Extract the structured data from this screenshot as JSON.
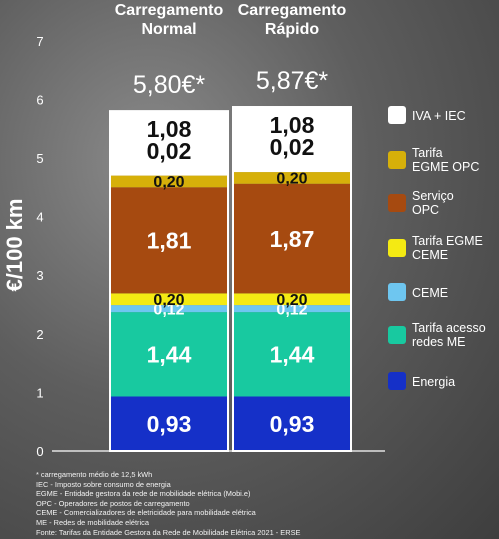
{
  "chart_data": {
    "type": "bar",
    "stacked": true,
    "ylabel": "€/100 km",
    "ylim": [
      0,
      7
    ],
    "yticks": [
      0,
      1,
      2,
      3,
      4,
      5,
      6,
      7
    ],
    "categories": [
      "Carregamento Normal",
      "Carregamento Rápido"
    ],
    "totals": [
      "5,80€*",
      "5,87€*"
    ],
    "series": [
      {
        "name": "Energia",
        "color": "#1530c8",
        "values": [
          0.93,
          0.93
        ],
        "labels": [
          "0,93",
          "0,93"
        ]
      },
      {
        "name": "Tarifa acesso redes ME",
        "color": "#18c9a0",
        "values": [
          1.44,
          1.44
        ],
        "labels": [
          "1,44",
          "1,44"
        ]
      },
      {
        "name": "CEME",
        "color": "#6ec6f0",
        "values": [
          0.12,
          0.12
        ],
        "labels": [
          "0,12",
          "0,12"
        ]
      },
      {
        "name": "Tarifa EGME CEME",
        "color": "#f4ea13",
        "values": [
          0.2,
          0.2
        ],
        "labels": [
          "0,20",
          "0,20"
        ]
      },
      {
        "name": "Serviço OPC",
        "color": "#a64a10",
        "values": [
          1.81,
          1.87
        ],
        "labels": [
          "1,81",
          "1,87"
        ]
      },
      {
        "name": "Tarifa EGME OPC",
        "color": "#d6b00a",
        "values": [
          0.2,
          0.2
        ],
        "labels": [
          "0,20",
          "0,20"
        ]
      },
      {
        "name": "IVA + IEC",
        "color": "#ffffff",
        "values": [
          1.1,
          1.11
        ],
        "labels": [
          "1,08 0,02",
          "1,08 0,02"
        ]
      }
    ],
    "legend_position": "right",
    "legend": [
      {
        "lines": [
          "IVA + IEC"
        ],
        "color": "#ffffff"
      },
      {
        "lines": [
          "Tarifa",
          "EGME OPC"
        ],
        "color": "#d6b00a"
      },
      {
        "lines": [
          "Serviço",
          "OPC"
        ],
        "color": "#a64a10"
      },
      {
        "lines": [
          "Tarifa EGME",
          "CEME"
        ],
        "color": "#f4ea13"
      },
      {
        "lines": [
          "CEME"
        ],
        "color": "#6ec6f0"
      },
      {
        "lines": [
          "Tarifa acesso",
          "redes ME"
        ],
        "color": "#18c9a0"
      },
      {
        "lines": [
          "Energia"
        ],
        "color": "#1530c8"
      }
    ],
    "category_lines": [
      [
        "Carregamento",
        "Normal"
      ],
      [
        "Carregamento",
        "Rápido"
      ]
    ],
    "grid": false
  },
  "footnotes": [
    "* carregamento médio de 12,5 kWh",
    "IEC - Imposto sobre consumo de energia",
    "EGME - Entidade gestora da rede de mobilidade elétrica (Mobi.e)",
    "OPC - Operadores de postos de carregamento",
    "CEME - Comercializadores de eletricidade para mobilidade elétrica",
    "ME - Redes de mobilidade elétrica",
    "Fonte: Tarifas da Entidade Gestora da Rede de Mobilidade Elétrica 2021 - ERSE"
  ]
}
